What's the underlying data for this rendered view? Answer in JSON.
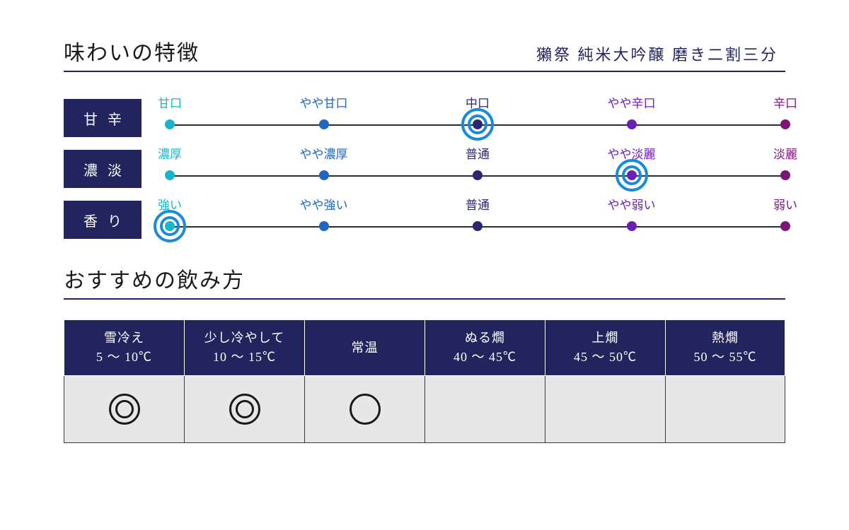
{
  "colors": {
    "title_text": "#1a1a1a",
    "rule": "#22245e",
    "product_text": "#22245e",
    "label_bg": "#22245e",
    "label_text": "#ffffff",
    "scale_line": "#2c2c2c",
    "ring": "#1b8bd6",
    "table_head_bg": "#22245e",
    "table_head_border": "#ffffff",
    "table_body_bg": "#e7e7e7",
    "table_body_border": "#3a3a3a",
    "mark": "#1a1a1a"
  },
  "section1_title": "味わいの特徴",
  "product_name": "獺祭 純米大吟醸 磨き二割三分",
  "tick_positions_pct": [
    0,
    25,
    50,
    75,
    100
  ],
  "tick_colors": [
    "#17b6c9",
    "#1e67c4",
    "#2a2770",
    "#6b1fb5",
    "#7a1879"
  ],
  "flavor_rows": [
    {
      "label": "甘辛",
      "ticks": [
        "甘口",
        "やや甘口",
        "中口",
        "やや辛口",
        "辛口"
      ],
      "selected_index": 2
    },
    {
      "label": "濃淡",
      "ticks": [
        "濃厚",
        "やや濃厚",
        "普通",
        "やや淡麗",
        "淡麗"
      ],
      "selected_index": 3
    },
    {
      "label": "香り",
      "ticks": [
        "強い",
        "やや強い",
        "普通",
        "やや弱い",
        "弱い"
      ],
      "selected_index": 0
    }
  ],
  "section2_title": "おすすめの飲み方",
  "drink_cols": [
    {
      "name": "雪冷え",
      "temp": "5 ～ 10℃",
      "mark": "double"
    },
    {
      "name": "少し冷やして",
      "temp": "10 ～ 15℃",
      "mark": "double"
    },
    {
      "name": "常温",
      "temp": "",
      "mark": "single"
    },
    {
      "name": "ぬる燗",
      "temp": "40 ～ 45℃",
      "mark": ""
    },
    {
      "name": "上燗",
      "temp": "45 ～ 50℃",
      "mark": ""
    },
    {
      "name": "熱燗",
      "temp": "50 ～ 55℃",
      "mark": ""
    }
  ]
}
